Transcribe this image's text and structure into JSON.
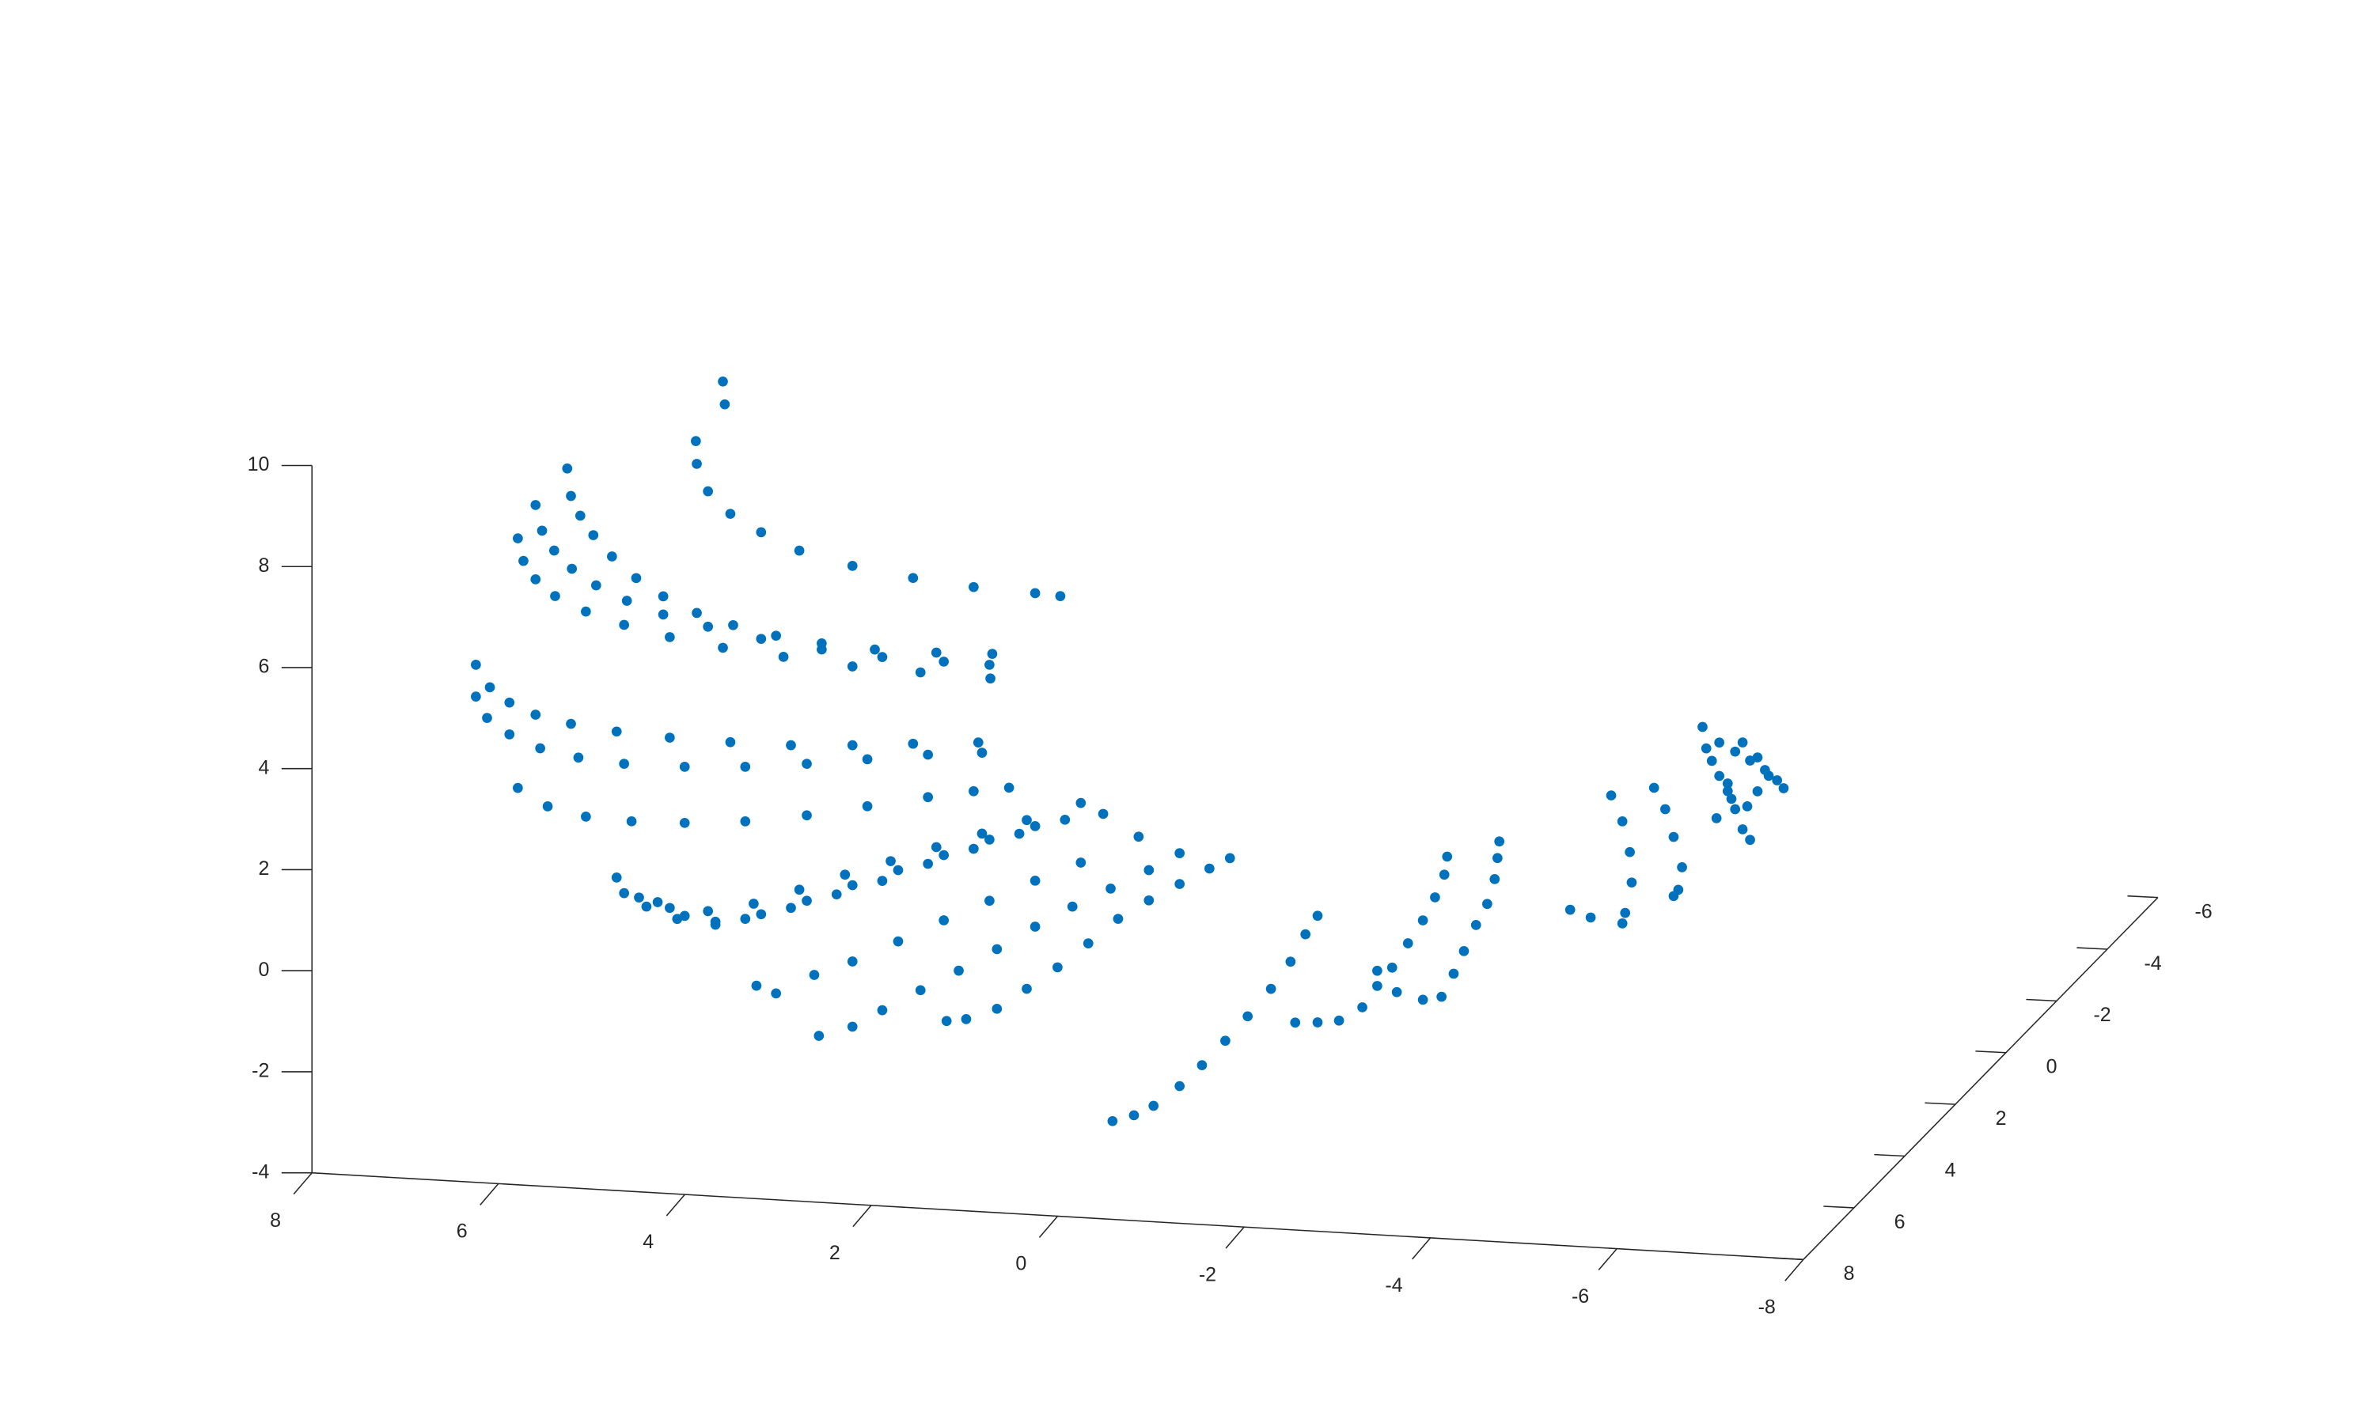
{
  "chart_data": {
    "type": "scatter3d",
    "color": "#0072BD",
    "xlim": [
      -8,
      8
    ],
    "ylim": [
      -6,
      8
    ],
    "zlim": [
      -4,
      10
    ],
    "xticks": [
      -8,
      -6,
      -4,
      -2,
      0,
      2,
      4,
      6,
      8
    ],
    "yticks": [
      -6,
      -4,
      -2,
      0,
      2,
      4,
      6,
      8
    ],
    "zticks": [
      -4,
      -2,
      0,
      2,
      4,
      6,
      8,
      10
    ],
    "points": [
      [
        4.95,
        3,
        9.43
      ],
      [
        4.93,
        3,
        8.98
      ],
      [
        5.24,
        3,
        8.22
      ],
      [
        5.23,
        3,
        7.77
      ],
      [
        5.11,
        3,
        7.24
      ],
      [
        4.87,
        3,
        6.82
      ],
      [
        4.54,
        3,
        6.49
      ],
      [
        4.13,
        3,
        6.17
      ],
      [
        3.56,
        3,
        5.93
      ],
      [
        2.91,
        3,
        5.76
      ],
      [
        2.26,
        3,
        5.65
      ],
      [
        1.6,
        3,
        5.6
      ],
      [
        1.33,
        3,
        5.57
      ],
      [
        6.62,
        3,
        7.53
      ],
      [
        6.58,
        3,
        6.99
      ],
      [
        6.48,
        3,
        6.61
      ],
      [
        6.34,
        3,
        6.24
      ],
      [
        6.14,
        3,
        5.84
      ],
      [
        5.88,
        3,
        5.44
      ],
      [
        5.59,
        3,
        5.11
      ],
      [
        5.23,
        3,
        4.82
      ],
      [
        4.84,
        3,
        4.62
      ],
      [
        4.38,
        3,
        4.46
      ],
      [
        3.89,
        3,
        4.36
      ],
      [
        3.32,
        3,
        4.3
      ],
      [
        2.66,
        3,
        4.31
      ],
      [
        2.06,
        3,
        4.35
      ],
      [
        6.96,
        3,
        6.77
      ],
      [
        6.89,
        3,
        6.27
      ],
      [
        6.76,
        3,
        5.89
      ],
      [
        6.57,
        3,
        5.55
      ],
      [
        6.31,
        3,
        5.25
      ],
      [
        5.98,
        3,
        4.98
      ],
      [
        5.59,
        3,
        4.75
      ],
      [
        5.11,
        3,
        4.56
      ],
      [
        4.54,
        3,
        4.38
      ],
      [
        3.89,
        3,
        4.24
      ],
      [
        3.24,
        3,
        4.16
      ],
      [
        2.58,
        3,
        4.14
      ],
      [
        2.09,
        3,
        4.13
      ],
      [
        7.15,
        3,
        6.09
      ],
      [
        7.09,
        3,
        5.65
      ],
      [
        6.96,
        3,
        5.3
      ],
      [
        6.75,
        3,
        4.99
      ],
      [
        6.42,
        3,
        4.72
      ],
      [
        6.01,
        3,
        4.5
      ],
      [
        5.52,
        3,
        4.31
      ],
      [
        4.95,
        3,
        4.16
      ],
      [
        4.3,
        3,
        4.05
      ],
      [
        3.56,
        3,
        3.94
      ],
      [
        2.83,
        3,
        3.9
      ],
      [
        2.08,
        3,
        3.86
      ],
      [
        7.6,
        3,
        3.54
      ],
      [
        7.45,
        3,
        3.11
      ],
      [
        7.24,
        3,
        2.83
      ],
      [
        6.96,
        3,
        2.62
      ],
      [
        6.58,
        3,
        2.48
      ],
      [
        6.09,
        3,
        2.38
      ],
      [
        5.52,
        3,
        2.32
      ],
      [
        4.87,
        3,
        2.3
      ],
      [
        4.22,
        3,
        2.31
      ],
      [
        3.56,
        3,
        2.38
      ],
      [
        2.91,
        3,
        2.48
      ],
      [
        2.21,
        3,
        2.58
      ],
      [
        7.6,
        3,
        2.91
      ],
      [
        7.48,
        3,
        2.5
      ],
      [
        7.24,
        3,
        2.2
      ],
      [
        6.91,
        3,
        1.96
      ],
      [
        6.5,
        3,
        1.82
      ],
      [
        6.01,
        3,
        1.75
      ],
      [
        5.36,
        3,
        1.76
      ],
      [
        4.71,
        3,
        1.83
      ],
      [
        4.05,
        3,
        1.96
      ],
      [
        3.4,
        3,
        2.12
      ],
      [
        2.75,
        3,
        2.28
      ],
      [
        2.17,
        3,
        2.38
      ],
      [
        7.15,
        3,
        1.15
      ],
      [
        6.83,
        3,
        0.82
      ],
      [
        6.42,
        3,
        0.66
      ],
      [
        5.93,
        3,
        0.62
      ],
      [
        5.36,
        3,
        0.65
      ],
      [
        4.71,
        3,
        0.75
      ],
      [
        4.05,
        3,
        0.94
      ],
      [
        3.4,
        3,
        1.19
      ],
      [
        2.75,
        3,
        1.44
      ],
      [
        2.26,
        3,
        1.61
      ],
      [
        1.88,
        3,
        1.72
      ],
      [
        6.09,
        3,
        -0.51
      ],
      [
        5.85,
        3,
        -0.88
      ],
      [
        5.52,
        3,
        -1.05
      ],
      [
        5.11,
        3,
        -1.07
      ],
      [
        4.62,
        3,
        -0.87
      ],
      [
        4.13,
        3,
        -0.54
      ],
      [
        3.64,
        3,
        -0.19
      ],
      [
        3.15,
        3,
        0.13
      ],
      [
        2.66,
        3,
        0.46
      ],
      [
        2.17,
        3,
        0.78
      ],
      [
        1.69,
        3,
        1.1
      ],
      [
        1.11,
        3,
        1.5
      ],
      [
        6.01,
        3,
        -0.81
      ],
      [
        5.77,
        3,
        -1.05
      ],
      [
        5.44,
        3,
        -1.26
      ],
      [
        5.03,
        3,
        -1.27
      ],
      [
        4.54,
        3,
        -1.07
      ],
      [
        4.05,
        3,
        -0.75
      ],
      [
        3.56,
        3,
        -0.39
      ],
      [
        3.07,
        3,
        -0.04
      ],
      [
        2.58,
        3,
        0.31
      ],
      [
        2.09,
        3,
        0.67
      ],
      [
        1.6,
        3,
        0.99
      ],
      [
        0.87,
        3,
        1.31
      ],
      [
        5.65,
        3,
        -0.95
      ],
      [
        5.36,
        3,
        -1.19
      ],
      [
        5.03,
        3,
        -1.33
      ],
      [
        4.71,
        3,
        -1.18
      ],
      [
        4.22,
        3,
        -0.91
      ],
      [
        3.73,
        3,
        -0.59
      ],
      [
        3.24,
        3,
        -0.27
      ],
      [
        2.75,
        3,
        0.12
      ],
      [
        2.26,
        3,
        0.47
      ],
      [
        1.77,
        3,
        0.82
      ],
      [
        1.28,
        3,
        1.15
      ],
      [
        4.59,
        3,
        -2.49
      ],
      [
        4.38,
        3,
        -2.62
      ],
      [
        3.97,
        3,
        -2.21
      ],
      [
        3.56,
        3,
        -1.9
      ],
      [
        3.07,
        3,
        -1.45
      ],
      [
        2.58,
        3,
        -0.98
      ],
      [
        2.09,
        3,
        -0.54
      ],
      [
        1.6,
        3,
        -0.09
      ],
      [
        1.11,
        3,
        0.32
      ],
      [
        0.49,
        3,
        0.9
      ],
      [
        3.92,
        3,
        -3.41
      ],
      [
        3.56,
        3,
        -3.19
      ],
      [
        3.24,
        3,
        -2.83
      ],
      [
        2.83,
        3,
        -2.39
      ],
      [
        2.42,
        3,
        -1.96
      ],
      [
        2.01,
        3,
        -1.49
      ],
      [
        1.6,
        3,
        -1.0
      ],
      [
        1.2,
        3,
        -0.56
      ],
      [
        0.79,
        3,
        -0.16
      ],
      [
        0.38,
        3,
        0.25
      ],
      [
        0.05,
        3,
        0.62
      ],
      [
        2.55,
        3,
        -2.97
      ],
      [
        2.34,
        3,
        -2.91
      ],
      [
        2.01,
        3,
        -2.67
      ],
      [
        1.69,
        3,
        -2.24
      ],
      [
        1.36,
        3,
        -1.78
      ],
      [
        1.03,
        3,
        -1.27
      ],
      [
        0.71,
        3,
        -0.75
      ],
      [
        0.38,
        3,
        -0.35
      ],
      [
        0.05,
        3,
        0.01
      ],
      [
        -0.27,
        3,
        0.35
      ],
      [
        -0.49,
        3,
        0.58
      ],
      [
        0.77,
        3,
        -4.76
      ],
      [
        0.54,
        3,
        -4.62
      ],
      [
        0.33,
        3,
        -4.41
      ],
      [
        0.05,
        3,
        -3.99
      ],
      [
        -0.19,
        3,
        -3.55
      ],
      [
        -0.44,
        3,
        -3.04
      ],
      [
        -0.68,
        3,
        -2.53
      ],
      [
        -0.93,
        3,
        -1.96
      ],
      [
        -1.14,
        3,
        -1.4
      ],
      [
        -1.3,
        3,
        -0.84
      ],
      [
        -1.43,
        3,
        -0.46
      ],
      [
        -1.19,
        3,
        -2.6
      ],
      [
        -1.43,
        3,
        -2.57
      ],
      [
        -1.66,
        3,
        -2.51
      ],
      [
        -1.91,
        3,
        -2.22
      ],
      [
        -2.07,
        3,
        -1.78
      ],
      [
        -2.23,
        3,
        -1.4
      ],
      [
        -2.4,
        3,
        -0.9
      ],
      [
        -2.56,
        3,
        -0.43
      ],
      [
        -2.69,
        3,
        0.04
      ],
      [
        -2.79,
        3,
        0.5
      ],
      [
        -2.82,
        3,
        0.86
      ],
      [
        -2.07,
        3,
        -1.48
      ],
      [
        -2.28,
        3,
        -1.88
      ],
      [
        -2.56,
        3,
        -2.0
      ],
      [
        -2.76,
        3,
        -1.92
      ],
      [
        -2.89,
        3,
        -1.45
      ],
      [
        -3.0,
        3,
        -0.99
      ],
      [
        -3.13,
        3,
        -0.46
      ],
      [
        -3.25,
        3,
        -0.03
      ],
      [
        -3.33,
        3,
        0.47
      ],
      [
        -3.36,
        3,
        0.89
      ],
      [
        -3.38,
        3,
        1.22
      ],
      [
        -4.14,
        3,
        -0.05
      ],
      [
        -4.36,
        3,
        -0.18
      ],
      [
        -4.58,
        3,
        2.26
      ],
      [
        -4.7,
        3,
        1.76
      ],
      [
        -4.78,
        3,
        1.16
      ],
      [
        -4.8,
        3,
        0.56
      ],
      [
        -4.73,
        3,
        -0.05
      ],
      [
        -4.7,
        3,
        -0.26
      ],
      [
        -5.04,
        3,
        2.46
      ],
      [
        -5.16,
        3,
        2.05
      ],
      [
        -5.25,
        3,
        1.51
      ],
      [
        -5.34,
        3,
        0.92
      ],
      [
        -5.3,
        3,
        0.47
      ],
      [
        -5.25,
        3,
        0.34
      ],
      [
        -5.56,
        3,
        3.72
      ],
      [
        -5.6,
        3,
        3.3
      ],
      [
        -5.66,
        3,
        3.06
      ],
      [
        -5.74,
        3,
        2.77
      ],
      [
        -5.83,
        3,
        2.48
      ],
      [
        -5.91,
        3,
        2.13
      ],
      [
        -5.99,
        3,
        1.74
      ],
      [
        -6.07,
        3,
        1.54
      ],
      [
        -5.74,
        3,
        3.43
      ],
      [
        -5.91,
        3,
        3.27
      ],
      [
        -6.07,
        3,
        3.11
      ],
      [
        -6.23,
        3,
        2.94
      ],
      [
        -6.36,
        3,
        2.75
      ],
      [
        -6.43,
        3,
        2.6
      ],
      [
        -5.99,
        3,
        3.46
      ],
      [
        -6.15,
        3,
        3.18
      ],
      [
        -6.27,
        3,
        2.83
      ],
      [
        -5.71,
        3,
        1.93
      ],
      [
        -5.83,
        3,
        2.63
      ],
      [
        -5.87,
        3,
        2.33
      ],
      [
        -6.04,
        3,
        2.2
      ],
      [
        -6.15,
        3,
        2.51
      ]
    ]
  }
}
